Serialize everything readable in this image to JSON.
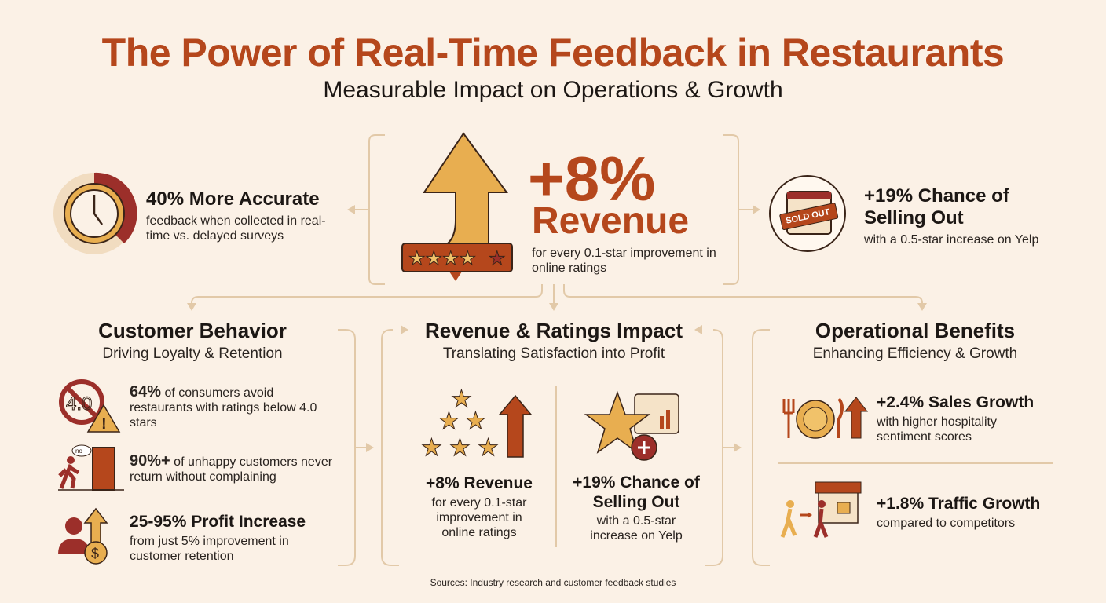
{
  "header": {
    "title": "The Power of Real-Time Feedback in Restaurants",
    "subtitle": "Measurable Impact on Operations & Growth"
  },
  "colors": {
    "background": "#fbf1e6",
    "accent": "#b5471c",
    "gold": "#e8ae50",
    "dark_red": "#9c2f2a",
    "line": "#e2c9a8"
  },
  "hero": {
    "left": {
      "icon": "clock-icon",
      "headline": "40% More Accurate",
      "text": "feedback when collected in real-time vs. delayed surveys"
    },
    "center": {
      "icon": "arrow-up-stars-icon",
      "value": "+8%",
      "label": "Revenue",
      "text": "for every 0.1-star improvement in online ratings"
    },
    "right": {
      "icon": "sold-out-calendar-icon",
      "badge": "SOLD OUT",
      "headline": "+19% Chance of Selling Out",
      "text": "with a 0.5-star increase on Yelp"
    }
  },
  "sections": [
    {
      "title": "Customer Behavior",
      "subtitle": "Driving Loyalty & Retention",
      "items": [
        {
          "icon": "no-4-star-warning-icon",
          "badge": "4.0",
          "bold": "64%",
          "text": " of consumers avoid restaurants with ratings below 4.0 stars"
        },
        {
          "icon": "person-leaving-door-icon",
          "badge": "no",
          "bold": "90%+",
          "text": " of unhappy customers never return without complaining"
        },
        {
          "icon": "person-dollar-arrow-icon",
          "bold": "25-95% Profit Increase",
          "text": "from just 5% improvement in customer retention"
        }
      ]
    },
    {
      "title": "Revenue & Ratings Impact",
      "subtitle": "Translating Satisfaction into Profit",
      "items": [
        {
          "icon": "stars-arrow-icon",
          "bold": "+8% Revenue",
          "text": "for every 0.1-star improvement in online ratings"
        },
        {
          "icon": "star-chart-plus-icon",
          "bold": "+19% Chance of Selling Out",
          "text": "with a 0.5-star increase on Yelp"
        }
      ]
    },
    {
      "title": "Operational Benefits",
      "subtitle": "Enhancing Efficiency & Growth",
      "items": [
        {
          "icon": "plate-cutlery-arrow-icon",
          "bold": "+2.4% Sales Growth",
          "text": "with higher hospitality sentiment scores"
        },
        {
          "icon": "people-storefront-icon",
          "bold": "+1.8% Traffic Growth",
          "text": "compared to competitors"
        }
      ]
    }
  ],
  "footer": {
    "sources": "Sources: Industry research and customer feedback studies"
  }
}
